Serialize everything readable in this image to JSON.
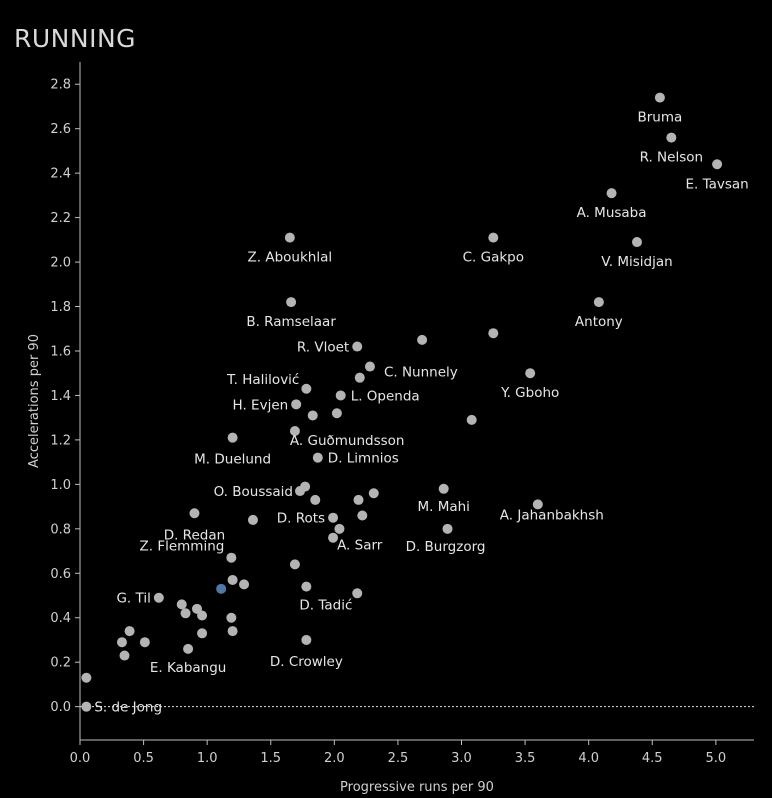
{
  "title": "RUNNING",
  "chart_data": {
    "type": "scatter",
    "title": "RUNNING",
    "xlabel": "Progressive runs per 90",
    "ylabel": "Accelerations per 90",
    "xlim": [
      0,
      5.3
    ],
    "ylim": [
      -0.15,
      2.9
    ],
    "xticks": [
      "0.0",
      "0.5",
      "1.0",
      "1.5",
      "2.0",
      "2.5",
      "3.0",
      "3.5",
      "4.0",
      "4.5",
      "5.0"
    ],
    "yticks": [
      "0.0",
      "0.2",
      "0.4",
      "0.6",
      "0.8",
      "1.0",
      "1.2",
      "1.4",
      "1.6",
      "1.8",
      "2.0",
      "2.2",
      "2.4",
      "2.6",
      "2.8"
    ],
    "reference_line_y": 0.0,
    "colors": {
      "point": "#b4b4b4",
      "highlight": "#4e79a7",
      "background": "#000000"
    },
    "points": [
      {
        "x": 4.56,
        "y": 2.74,
        "label": "Bruma"
      },
      {
        "x": 4.65,
        "y": 2.56,
        "label": "R. Nelson"
      },
      {
        "x": 5.01,
        "y": 2.44,
        "label": "E. Tavsan"
      },
      {
        "x": 4.18,
        "y": 2.31,
        "label": "A. Musaba"
      },
      {
        "x": 1.65,
        "y": 2.11,
        "label": "Z. Aboukhlal"
      },
      {
        "x": 3.25,
        "y": 2.11,
        "label": "C. Gakpo"
      },
      {
        "x": 4.38,
        "y": 2.09,
        "label": "V. Misidjan"
      },
      {
        "x": 1.66,
        "y": 1.82,
        "label": "B. Ramselaar"
      },
      {
        "x": 4.08,
        "y": 1.82,
        "label": "Antony"
      },
      {
        "x": 2.69,
        "y": 1.65,
        "label": ""
      },
      {
        "x": 3.25,
        "y": 1.68,
        "label": ""
      },
      {
        "x": 2.18,
        "y": 1.62,
        "label": "R. Vloet"
      },
      {
        "x": 2.28,
        "y": 1.53,
        "label": "C. Nunnely"
      },
      {
        "x": 2.2,
        "y": 1.48,
        "label": ""
      },
      {
        "x": 3.54,
        "y": 1.5,
        "label": "Y. Gboho"
      },
      {
        "x": 1.78,
        "y": 1.43,
        "label": "T. Halilović"
      },
      {
        "x": 2.05,
        "y": 1.4,
        "label": "L. Openda"
      },
      {
        "x": 1.7,
        "y": 1.36,
        "label": "H. Evjen"
      },
      {
        "x": 1.83,
        "y": 1.31,
        "label": ""
      },
      {
        "x": 2.02,
        "y": 1.32,
        "label": ""
      },
      {
        "x": 3.08,
        "y": 1.29,
        "label": ""
      },
      {
        "x": 1.69,
        "y": 1.24,
        "label": "A. Guðmundsson"
      },
      {
        "x": 1.2,
        "y": 1.21,
        "label": "M. Duelund"
      },
      {
        "x": 1.87,
        "y": 1.12,
        "label": "D. Limnios"
      },
      {
        "x": 1.73,
        "y": 0.97,
        "label": "O. Boussaid"
      },
      {
        "x": 1.77,
        "y": 0.99,
        "label": ""
      },
      {
        "x": 1.85,
        "y": 0.93,
        "label": ""
      },
      {
        "x": 2.19,
        "y": 0.93,
        "label": ""
      },
      {
        "x": 2.31,
        "y": 0.96,
        "label": ""
      },
      {
        "x": 2.86,
        "y": 0.98,
        "label": "M. Mahi"
      },
      {
        "x": 3.6,
        "y": 0.91,
        "label": "A. Jahanbakhsh"
      },
      {
        "x": 0.9,
        "y": 0.87,
        "label": "D. Redan"
      },
      {
        "x": 1.36,
        "y": 0.84,
        "label": ""
      },
      {
        "x": 1.99,
        "y": 0.85,
        "label": "D. Rots"
      },
      {
        "x": 2.22,
        "y": 0.86,
        "label": ""
      },
      {
        "x": 2.04,
        "y": 0.8,
        "label": ""
      },
      {
        "x": 2.89,
        "y": 0.8,
        "label": "D. Burgzorg"
      },
      {
        "x": 1.99,
        "y": 0.76,
        "label": "A. Sarr"
      },
      {
        "x": 1.19,
        "y": 0.67,
        "label": "Z. Flemming"
      },
      {
        "x": 1.69,
        "y": 0.64,
        "label": ""
      },
      {
        "x": 1.11,
        "y": 0.53,
        "label": "",
        "highlight": true
      },
      {
        "x": 1.2,
        "y": 0.57,
        "label": ""
      },
      {
        "x": 1.29,
        "y": 0.55,
        "label": ""
      },
      {
        "x": 1.78,
        "y": 0.54,
        "label": "D. Tadić"
      },
      {
        "x": 2.18,
        "y": 0.51,
        "label": ""
      },
      {
        "x": 0.62,
        "y": 0.49,
        "label": "G. Til"
      },
      {
        "x": 0.8,
        "y": 0.46,
        "label": ""
      },
      {
        "x": 0.83,
        "y": 0.42,
        "label": ""
      },
      {
        "x": 0.92,
        "y": 0.44,
        "label": ""
      },
      {
        "x": 0.96,
        "y": 0.41,
        "label": ""
      },
      {
        "x": 1.19,
        "y": 0.4,
        "label": ""
      },
      {
        "x": 0.39,
        "y": 0.34,
        "label": ""
      },
      {
        "x": 0.96,
        "y": 0.33,
        "label": ""
      },
      {
        "x": 1.2,
        "y": 0.34,
        "label": ""
      },
      {
        "x": 0.33,
        "y": 0.29,
        "label": ""
      },
      {
        "x": 0.51,
        "y": 0.29,
        "label": ""
      },
      {
        "x": 1.78,
        "y": 0.3,
        "label": "D. Crowley"
      },
      {
        "x": 0.85,
        "y": 0.26,
        "label": "E. Kabangu"
      },
      {
        "x": 0.35,
        "y": 0.23,
        "label": ""
      },
      {
        "x": 0.05,
        "y": 0.13,
        "label": ""
      },
      {
        "x": 0.05,
        "y": 0.0,
        "label": "S. de Jong"
      }
    ]
  }
}
